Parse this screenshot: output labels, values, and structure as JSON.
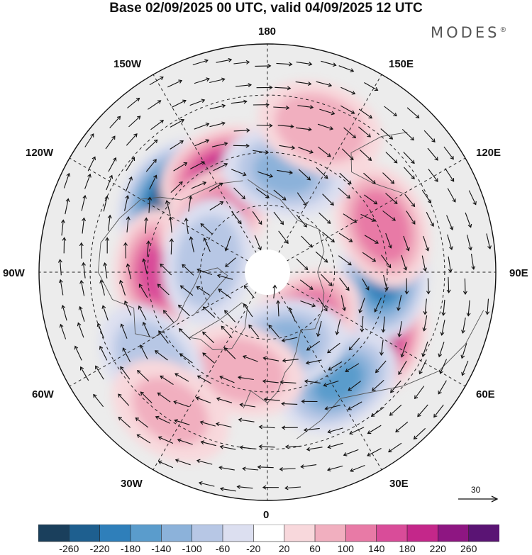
{
  "header": {
    "title": "Base 02/09/2025 00 UTC, valid 04/09/2025 12 UTC",
    "brand": "MODES",
    "brand_mark": "®"
  },
  "map": {
    "projection": "north-polar-stereographic",
    "longitude_labels": {
      "top": "180",
      "bottom": "0",
      "left": "90W",
      "right": "90E",
      "upper_left_1": "150W",
      "upper_left_2": "120W",
      "upper_right_1": "150E",
      "upper_right_2": "120E",
      "lower_left_1": "60W",
      "lower_left_2": "30W",
      "lower_right_1": "60E",
      "lower_right_2": "30E"
    },
    "anomalies": [
      {
        "name": "gulf-of-alaska-low",
        "lon_deg": -128,
        "colat_deg": 36,
        "value": -240
      },
      {
        "name": "hudson-high",
        "lon_deg": -90,
        "colat_deg": 32,
        "value": 150
      },
      {
        "name": "north-pacific-high",
        "lon_deg": -155,
        "colat_deg": 32,
        "value": 190
      },
      {
        "name": "alaska-high",
        "lon_deg": -135,
        "colat_deg": 22,
        "value": 130
      },
      {
        "name": "west-siberia-high",
        "lon_deg": 56,
        "colat_deg": 38,
        "value": 200
      },
      {
        "name": "central-siberia-low",
        "lon_deg": 88,
        "colat_deg": 34,
        "value": -190
      },
      {
        "name": "east-siberia-high",
        "lon_deg": 112,
        "colat_deg": 36,
        "value": 130
      },
      {
        "name": "barents-high",
        "lon_deg": 35,
        "colat_deg": 18,
        "value": 150
      },
      {
        "name": "europe-low",
        "lon_deg": 33,
        "colat_deg": 38,
        "value": -140
      },
      {
        "name": "scandinavia-low",
        "lon_deg": 12,
        "colat_deg": 22,
        "value": -110
      },
      {
        "name": "atlantic-high",
        "lon_deg": -15,
        "colat_deg": 30,
        "value": 80
      },
      {
        "name": "mid-atlantic-low",
        "lon_deg": -52,
        "colat_deg": 42,
        "value": -90
      },
      {
        "name": "north-atlantic-weak-high",
        "lon_deg": -35,
        "colat_deg": 48,
        "value": 60
      },
      {
        "name": "bering-low",
        "lon_deg": 170,
        "colat_deg": 30,
        "value": -100
      },
      {
        "name": "pacific-high",
        "lon_deg": 160,
        "colat_deg": 44,
        "value": 90
      },
      {
        "name": "canada-low",
        "lon_deg": -100,
        "colat_deg": 18,
        "value": -90
      }
    ]
  },
  "colorbar": {
    "levels": [
      "-260",
      "-220",
      "-180",
      "-140",
      "-100",
      "-60",
      "-20",
      "20",
      "60",
      "100",
      "140",
      "180",
      "220",
      "260"
    ],
    "colors": [
      "#1a3f5c",
      "#1e5f8f",
      "#2f7fba",
      "#5a9ccc",
      "#8cb2da",
      "#b7c7e5",
      "#dcdff0",
      "#ffffff",
      "#f8d8dc",
      "#f1afbf",
      "#e87aa6",
      "#d94c99",
      "#c4278a",
      "#8e1682",
      "#5a1474"
    ],
    "ref_vector": "30"
  }
}
